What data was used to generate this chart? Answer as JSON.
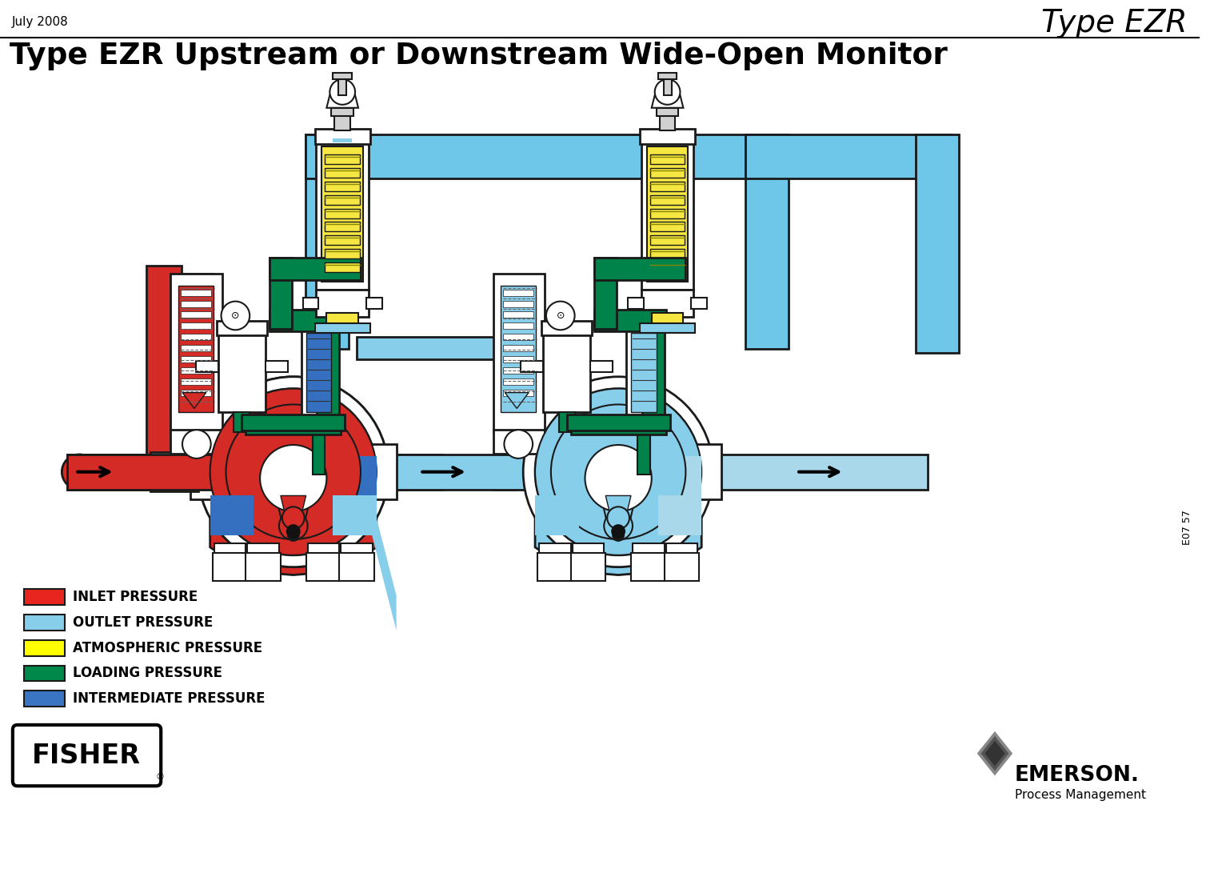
{
  "title_type": "Type EZR",
  "title_main": "Type EZR Upstream or Downstream Wide-Open Monitor",
  "date_label": "July 2008",
  "doc_id": "E07 57",
  "background_color": "#ffffff",
  "legend_items": [
    {
      "label": "INLET PRESSURE",
      "color": "#e8251f"
    },
    {
      "label": "OUTLET PRESSURE",
      "color": "#87ceeb"
    },
    {
      "label": "ATMOSPHERIC PRESSURE",
      "color": "#ffff00"
    },
    {
      "label": "LOADING PRESSURE",
      "color": "#00884a"
    },
    {
      "label": "INTERMEDIATE PRESSURE",
      "color": "#3a75c4"
    }
  ],
  "inlet_color": "#d42b26",
  "outlet_lt_color": "#a8d8ea",
  "outlet_color": "#87ceeb",
  "outlet_dk_color": "#4da9d8",
  "atm_color": "#f5e642",
  "loading_color": "#00834a",
  "inter_color": "#3570c0",
  "gray": "#d0d0d0",
  "white": "#ffffff",
  "outline": "#1a1a1a",
  "pipe_blue": "#6ec6e8",
  "pipe_blue_dk": "#2d9dd4",
  "mid_blue": "#3060b0"
}
